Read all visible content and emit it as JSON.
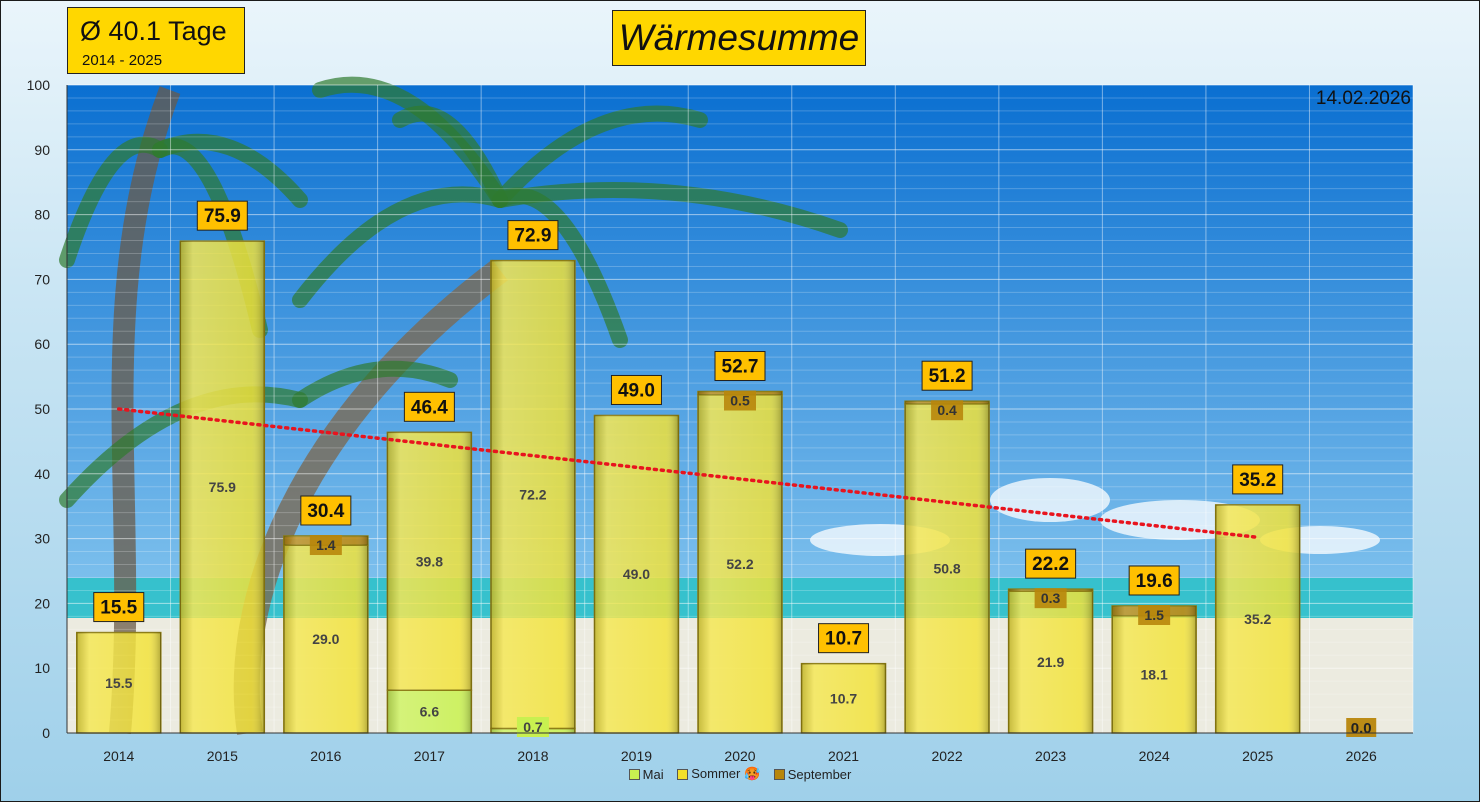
{
  "header": {
    "avg_label": "Ø 40.1 Tage",
    "avg_range": "2014 - 2025",
    "title": "Wärmesumme",
    "date": "14.02.2026"
  },
  "legend": {
    "items": [
      {
        "label": "Mai",
        "color": "#c8f050"
      },
      {
        "label": "Sommer 🥵",
        "color": "#f2e02a"
      },
      {
        "label": "September",
        "color": "#b8860b"
      }
    ]
  },
  "colors": {
    "mai": "#c8f050",
    "sommer": "#f2e02a",
    "september": "#b8860b",
    "total_label_bg": "#ffc000",
    "trend": "#e8141e",
    "sky_top": "#0a6fd1",
    "sky_bottom": "#9fd8f5",
    "sea": "#2fc1c9",
    "sand": "#ecebe0"
  },
  "chart_data": {
    "type": "bar",
    "stacked": true,
    "categories": [
      "2014",
      "2015",
      "2016",
      "2017",
      "2018",
      "2019",
      "2020",
      "2021",
      "2022",
      "2023",
      "2024",
      "2025",
      "2026"
    ],
    "series": [
      {
        "name": "Mai",
        "values": [
          0,
          0,
          0,
          6.6,
          0.7,
          0,
          0,
          0,
          0,
          0,
          0,
          0,
          0
        ]
      },
      {
        "name": "Sommer 🥵",
        "values": [
          15.5,
          75.9,
          29.0,
          39.8,
          72.2,
          49.0,
          52.2,
          10.7,
          50.8,
          21.9,
          18.1,
          35.2,
          0
        ]
      },
      {
        "name": "September",
        "values": [
          0,
          0,
          1.4,
          0,
          0,
          0,
          0.5,
          0,
          0.4,
          0.3,
          1.5,
          0,
          0
        ]
      }
    ],
    "totals": [
      "15.5",
      "75.9",
      "30.4",
      "46.4",
      "72.9",
      "49.0",
      "52.7",
      "10.7",
      "51.2",
      "22.2",
      "19.6",
      "35.2",
      "0.0"
    ],
    "segment_labels": {
      "mai": [
        "",
        "",
        "",
        "6.6",
        "0.7",
        "",
        "",
        "",
        "",
        "",
        "",
        "",
        ""
      ],
      "sommer": [
        "15.5",
        "75.9",
        "29.0",
        "39.8",
        "72.2",
        "49.0",
        "52.2",
        "10.7",
        "50.8",
        "21.9",
        "18.1",
        "35.2",
        ""
      ],
      "september": [
        "",
        "",
        "1.4",
        "",
        "",
        "",
        "0.5",
        "",
        "0.4",
        "0.3",
        "1.5",
        "",
        ""
      ]
    },
    "trendline": {
      "type": "linear",
      "from_category": "2014",
      "to_category": "2025",
      "start": 50.0,
      "end": 30.2
    },
    "ylim": [
      0,
      100
    ],
    "yticks": [
      0,
      10,
      20,
      30,
      40,
      50,
      60,
      70,
      80,
      90,
      100
    ],
    "grid": true,
    "legend_position": "bottom"
  }
}
